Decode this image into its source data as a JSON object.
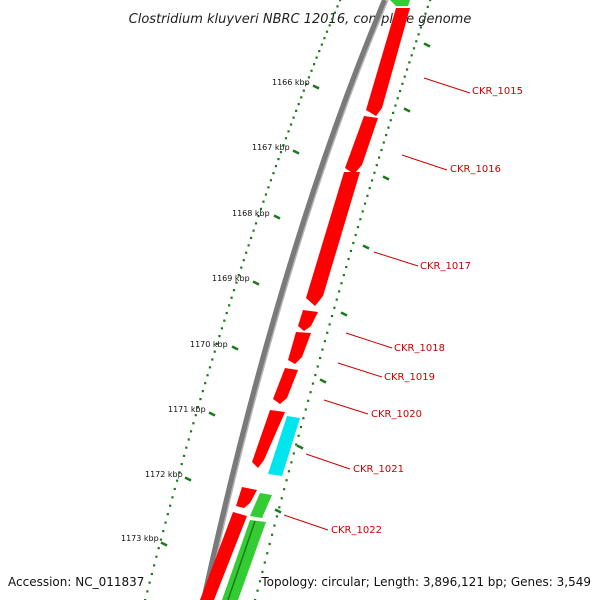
{
  "title": "Clostridium kluyveri NBRC 12016, complete genome",
  "footer": {
    "accession": "Accession: NC_011837",
    "summary": "Topology: circular; Length: 3,896,121 bp; Genes: 3,549"
  },
  "colors": {
    "backbone": "#7a7a7a",
    "gene_default": "#ff0000",
    "gene_highlight": "#00e5ee",
    "rna": "#33cc33",
    "tick": "#1a7a1a",
    "label": "#cc0000"
  },
  "scale_ticks": [
    "1166 kbp",
    "1167 kbp",
    "1168 kbp",
    "1169 kbp",
    "1170 kbp",
    "1171 kbp",
    "1172 kbp",
    "1173 kbp"
  ],
  "gene_labels": [
    "CKR_1015",
    "CKR_1016",
    "CKR_1017",
    "CKR_1018",
    "CKR_1019",
    "CKR_1020",
    "CKR_1021",
    "CKR_1022"
  ]
}
